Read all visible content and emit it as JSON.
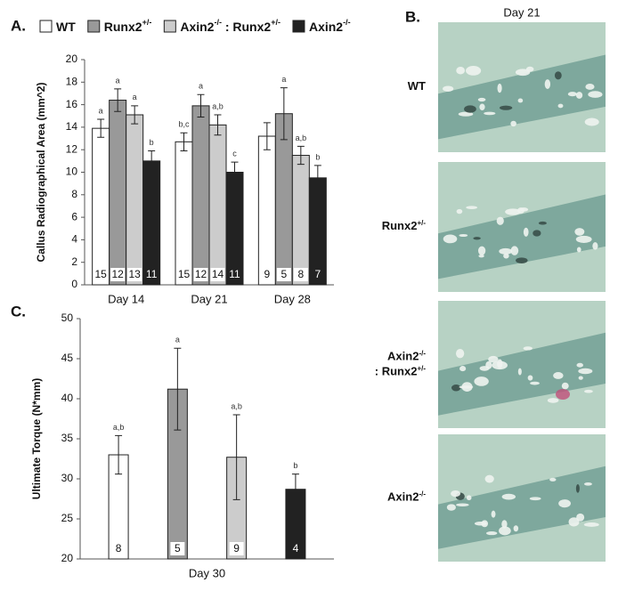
{
  "chart_data": [
    {
      "type": "bar",
      "panel_label": "A.",
      "ylabel": "Callus Radiographical Area (mm^2)",
      "categories": [
        "Day 14",
        "Day 21",
        "Day 28"
      ],
      "ylim": [
        0,
        20
      ],
      "yticks": [
        0,
        2,
        4,
        6,
        8,
        10,
        12,
        14,
        16,
        18,
        20
      ],
      "grid": false,
      "legend": "top",
      "series": [
        {
          "name": "WT",
          "color": "#ffffff",
          "values": [
            13.9,
            12.7,
            13.2
          ],
          "errors": [
            0.8,
            0.8,
            1.2
          ],
          "letters": [
            "a",
            "b,c",
            null
          ],
          "n": [
            15,
            15,
            9
          ]
        },
        {
          "name": "Runx2+/-",
          "color": "#999999",
          "values": [
            16.4,
            15.9,
            15.2
          ],
          "errors": [
            1.0,
            1.0,
            2.3
          ],
          "letters": [
            "a",
            "a",
            "a"
          ],
          "n": [
            12,
            12,
            5
          ]
        },
        {
          "name": "Axin2-/- : Runx2+/-",
          "color": "#cccccc",
          "values": [
            15.1,
            14.2,
            11.5
          ],
          "errors": [
            0.8,
            0.9,
            0.8
          ],
          "letters": [
            "a",
            "a,b",
            "a,b"
          ],
          "n": [
            13,
            14,
            8
          ]
        },
        {
          "name": "Axin2-/-",
          "color": "#222222",
          "values": [
            11.0,
            10.0,
            9.5
          ],
          "errors": [
            0.9,
            0.9,
            1.1
          ],
          "letters": [
            "b",
            "c",
            "b"
          ],
          "n": [
            11,
            11,
            7
          ]
        }
      ]
    },
    {
      "type": "bar",
      "panel_label": "C.",
      "ylabel": "Ultimate Torque (N*mm)",
      "categories": [
        "Day 30"
      ],
      "ylim": [
        20,
        50
      ],
      "yticks": [
        20,
        25,
        30,
        35,
        40,
        45,
        50
      ],
      "grid": false,
      "series": [
        {
          "color": "#ffffff",
          "values": [
            33.0
          ],
          "errors": [
            2.4
          ],
          "letters": [
            "a,b"
          ],
          "n": [
            8
          ]
        },
        {
          "color": "#999999",
          "values": [
            41.2
          ],
          "errors": [
            5.1
          ],
          "letters": [
            "a"
          ],
          "n": [
            5
          ]
        },
        {
          "color": "#cccccc",
          "values": [
            32.7
          ],
          "errors": [
            5.3
          ],
          "letters": [
            "a,b"
          ],
          "n": [
            9
          ]
        },
        {
          "color": "#222222",
          "values": [
            28.7
          ],
          "errors": [
            1.9
          ],
          "letters": [
            "b"
          ],
          "n": [
            4
          ]
        }
      ]
    }
  ],
  "panel_b": {
    "label": "B.",
    "title": "Day 21",
    "images": [
      {
        "label_lines": [
          "WT"
        ]
      },
      {
        "label_lines": [
          "Runx2+/-"
        ]
      },
      {
        "label_lines": [
          "Axin2-/-",
          ": Runx2+/-"
        ]
      },
      {
        "label_lines": [
          "Axin2-/-"
        ]
      }
    ]
  }
}
